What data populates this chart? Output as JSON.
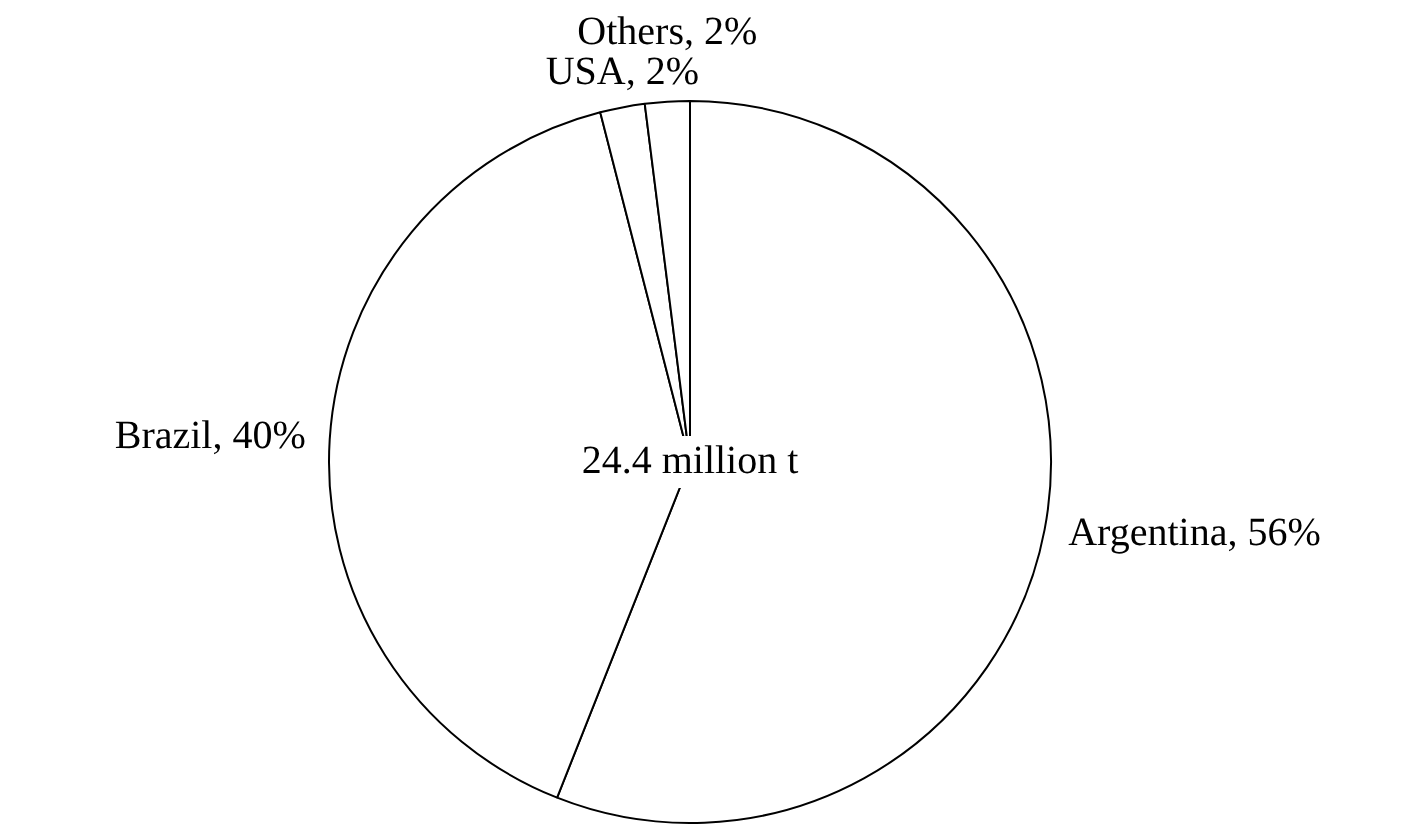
{
  "chart_data": {
    "type": "pie",
    "categories": [
      "Argentina, 56%",
      "Brazil, 40%",
      "USA, 2%",
      "Others, 2%"
    ],
    "values": [
      56,
      40,
      2,
      2
    ],
    "colors": [
      "#ffffff",
      "#ffffff",
      "#ffffff",
      "#ffffff"
    ],
    "annotations": [
      "24.4 million t"
    ],
    "legend": false
  }
}
